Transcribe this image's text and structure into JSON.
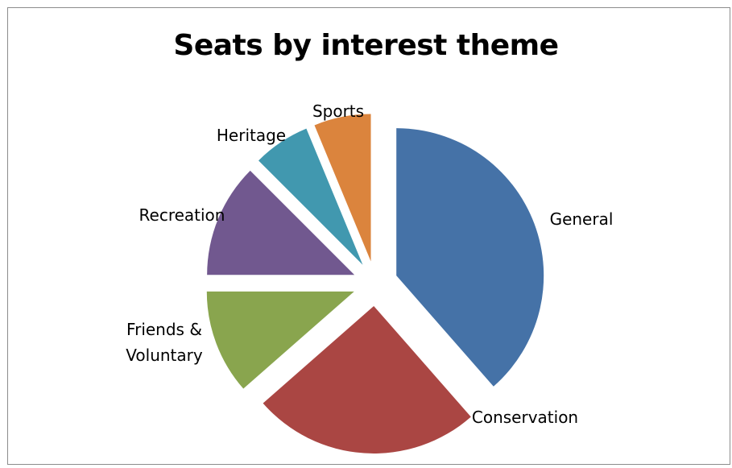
{
  "chart_data": {
    "type": "pie",
    "title": "Seats by interest theme",
    "slices": [
      {
        "label": "General",
        "value": 37,
        "color": "#4572A7"
      },
      {
        "label": "Conservation",
        "value": 24,
        "color": "#AA4643"
      },
      {
        "label": "Friends &\nVoluntary",
        "value": 11,
        "color": "#89A54E"
      },
      {
        "label": "Recreation",
        "value": 12,
        "color": "#71588F"
      },
      {
        "label": "Heritage",
        "value": 6,
        "color": "#4198AF"
      },
      {
        "label": "Sports",
        "value": 6,
        "color": "#DB843D"
      }
    ],
    "legend": "none",
    "data_labels": "category names outside slices"
  }
}
